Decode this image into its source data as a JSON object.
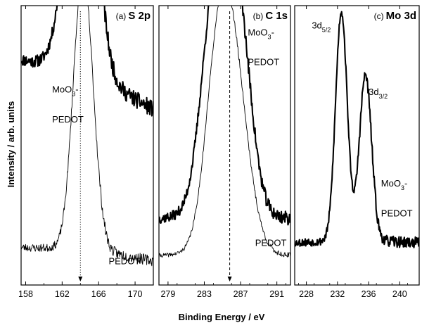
{
  "chart_data": {
    "type": "line",
    "xlabel": "Binding Energy / eV",
    "ylabel": "Intensity / arb. units",
    "panels": [
      {
        "id": "a",
        "tag": "(a)",
        "title": "S 2p",
        "xlim": [
          157.5,
          172
        ],
        "xticks": [
          "158",
          "162",
          "166",
          "170"
        ],
        "xtick_values": [
          158,
          162,
          166,
          170
        ],
        "marker_line": {
          "x": 164.0,
          "style": "dotted"
        },
        "series": [
          {
            "name": "MoO3-PEDOT",
            "bold": true,
            "baseline": 0.72,
            "noise": 0.012,
            "seed": 11,
            "peaks": [
              {
                "center": 164.5,
                "height": 1.0,
                "width": 1.35
              },
              {
                "center": 163.2,
                "height": 0.42,
                "width": 1.4
              }
            ],
            "slope": 0.015,
            "tail": 0.12
          },
          {
            "name": "PEDOT",
            "bold": false,
            "baseline": 0.0,
            "noise": 0.008,
            "seed": 23,
            "peaks": [
              {
                "center": 164.0,
                "height": 0.95,
                "width": 0.95
              },
              {
                "center": 165.1,
                "height": 0.42,
                "width": 0.9
              }
            ],
            "slope": 0.004,
            "tail": 0.05
          }
        ],
        "labels": [
          {
            "parts": [
              {
                "t": "MoO"
              },
              {
                "t": "3",
                "sub": true
              },
              {
                "t": "-"
              }
            ],
            "x": 160.9,
            "y": 0.72
          },
          {
            "parts": [
              {
                "t": "PEDOT"
              }
            ],
            "x": 160.9,
            "y": 0.59
          },
          {
            "parts": [
              {
                "t": "PEDOT"
              }
            ],
            "x": 167.1,
            "y": -0.03
          }
        ]
      },
      {
        "id": "b",
        "tag": "(b)",
        "title": "C 1s",
        "xlim": [
          278,
          292.5
        ],
        "xticks": [
          "279",
          "283",
          "287",
          "291"
        ],
        "xtick_values": [
          279,
          283,
          287,
          291
        ],
        "marker_line": {
          "x": 285.8,
          "style": "dashed"
        },
        "series": [
          {
            "name": "MoO3-PEDOT",
            "bold": true,
            "baseline": 0.14,
            "noise": 0.01,
            "seed": 37,
            "peaks": [
              {
                "center": 285.8,
                "height": 1.0,
                "width": 1.55
              },
              {
                "center": 283.6,
                "height": 0.55,
                "width": 1.3
              },
              {
                "center": 287.5,
                "height": 0.22,
                "width": 1.2
              }
            ],
            "slope": 0.0,
            "tail": 0.1
          },
          {
            "name": "PEDOT",
            "bold": false,
            "baseline": 0.0,
            "noise": 0.004,
            "seed": 41,
            "peaks": [
              {
                "center": 285.8,
                "height": 0.95,
                "width": 1.75
              },
              {
                "center": 284.2,
                "height": 0.35,
                "width": 1.3
              }
            ],
            "slope": 0.0,
            "tail": 0.03
          }
        ],
        "labels": [
          {
            "parts": [
              {
                "t": "MoO"
              },
              {
                "t": "3",
                "sub": true
              },
              {
                "t": "-"
              }
            ],
            "x": 287.8,
            "y": 0.97
          },
          {
            "parts": [
              {
                "t": "PEDOT"
              }
            ],
            "x": 287.8,
            "y": 0.84
          },
          {
            "parts": [
              {
                "t": "PEDOT"
              }
            ],
            "x": 288.6,
            "y": 0.05
          }
        ]
      },
      {
        "id": "c",
        "tag": "(c)",
        "title": "Mo 3d",
        "xlim": [
          226.5,
          242.5
        ],
        "xticks": [
          "228",
          "232",
          "236",
          "240"
        ],
        "xtick_values": [
          228,
          232,
          236,
          240
        ],
        "marker_line": null,
        "series": [
          {
            "name": "MoO3-PEDOT",
            "bold": true,
            "baseline": 0.06,
            "noise": 0.008,
            "seed": 53,
            "peaks": [
              {
                "center": 232.5,
                "height": 1.0,
                "width": 0.75
              },
              {
                "center": 235.6,
                "height": 0.72,
                "width": 0.78
              }
            ],
            "slope": 0.0,
            "tail": 0.02
          }
        ],
        "labels": [
          {
            "parts": [
              {
                "t": "3d"
              },
              {
                "t": "5/2",
                "sub": true
              }
            ],
            "x": 228.7,
            "y": 1.0
          },
          {
            "parts": [
              {
                "t": "3d"
              },
              {
                "t": "3/2",
                "sub": true
              }
            ],
            "x": 236.0,
            "y": 0.71
          },
          {
            "parts": [
              {
                "t": "MoO"
              },
              {
                "t": "3",
                "sub": true
              },
              {
                "t": "-"
              }
            ],
            "x": 237.6,
            "y": 0.31
          },
          {
            "parts": [
              {
                "t": "PEDOT"
              }
            ],
            "x": 237.6,
            "y": 0.18
          }
        ]
      }
    ]
  }
}
